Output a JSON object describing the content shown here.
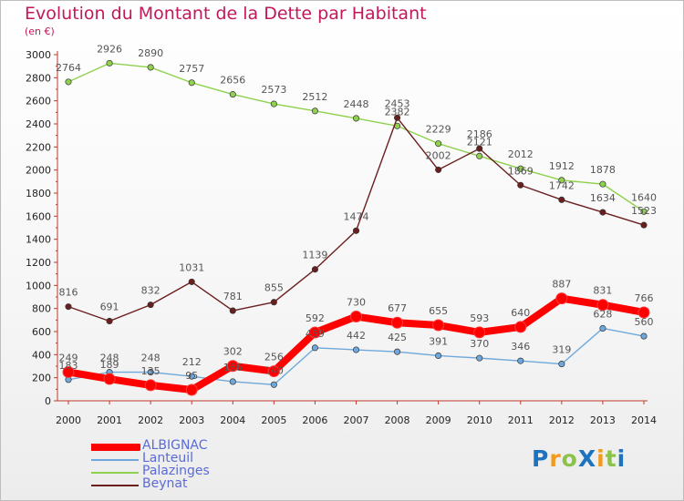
{
  "chart_data": {
    "type": "line",
    "title": "Evolution du Montant de la Dette par Habitant",
    "subtitle": "(en €)",
    "x": [
      "2000",
      "2001",
      "2002",
      "2003",
      "2004",
      "2005",
      "2006",
      "2007",
      "2008",
      "2009",
      "2010",
      "2011",
      "2012",
      "2013",
      "2014"
    ],
    "ylim": [
      0,
      3000
    ],
    "yticks": [
      0,
      200,
      400,
      600,
      800,
      1000,
      1200,
      1400,
      1600,
      1800,
      2000,
      2200,
      2400,
      2600,
      2800,
      3000
    ],
    "grid": false,
    "legend_position": "bottom-left",
    "series": [
      {
        "name": "ALBIGNAC",
        "color": "#ff0000",
        "values": [
          249,
          189,
          135,
          95,
          302,
          256,
          592,
          730,
          677,
          655,
          593,
          640,
          887,
          831,
          766
        ],
        "labels": [
          "249",
          "189",
          "135",
          "95",
          "302",
          "256",
          "592",
          "730",
          "677",
          "655",
          "593",
          "640",
          "887",
          "831",
          "766"
        ]
      },
      {
        "name": "Lanteuil",
        "color": "#6fa8dc",
        "values": [
          183,
          248,
          248,
          212,
          166,
          140,
          459,
          442,
          425,
          391,
          370,
          346,
          319,
          628,
          560
        ],
        "labels": [
          "183",
          "248",
          "248",
          "212",
          "166",
          "140",
          "459",
          "442",
          "425",
          "391",
          "370",
          "346",
          "319",
          "628",
          "560"
        ]
      },
      {
        "name": "Palazinges",
        "color": "#8fd14f",
        "values": [
          2764,
          2926,
          2890,
          2757,
          2656,
          2573,
          2512,
          2448,
          2382,
          2229,
          2121,
          2012,
          1912,
          1878,
          1640
        ],
        "labels": [
          "2764",
          "2926",
          "2890",
          "2757",
          "2656",
          "2573",
          "2512",
          "2448",
          "2382",
          "2229",
          "2121",
          "2012",
          "1912",
          "1878",
          "1640"
        ]
      },
      {
        "name": "Beynat",
        "color": "#6b1e1e",
        "values": [
          816,
          691,
          832,
          1031,
          781,
          855,
          1139,
          1474,
          2453,
          2002,
          2186,
          1869,
          1742,
          1634,
          1523
        ],
        "labels": [
          "816",
          "691",
          "832",
          "1031",
          "781",
          "855",
          "1139",
          "1474",
          "2453",
          "2002",
          "2186",
          "1869",
          "1742",
          "1634",
          "1523"
        ]
      }
    ]
  },
  "legend": {
    "albignac": "ALBIGNAC",
    "lanteuil": "Lanteuil",
    "palazinges": "Palazinges",
    "beynat": "Beynat"
  },
  "logo": {
    "text": "ProXiti",
    "letters": [
      "P",
      "r",
      "o",
      "X",
      "i",
      "t",
      "i"
    ],
    "colors": [
      "#1e73be",
      "#f29a1b",
      "#8bc34a",
      "#1e73be",
      "#f29a1b",
      "#8bc34a",
      "#1e73be"
    ]
  }
}
